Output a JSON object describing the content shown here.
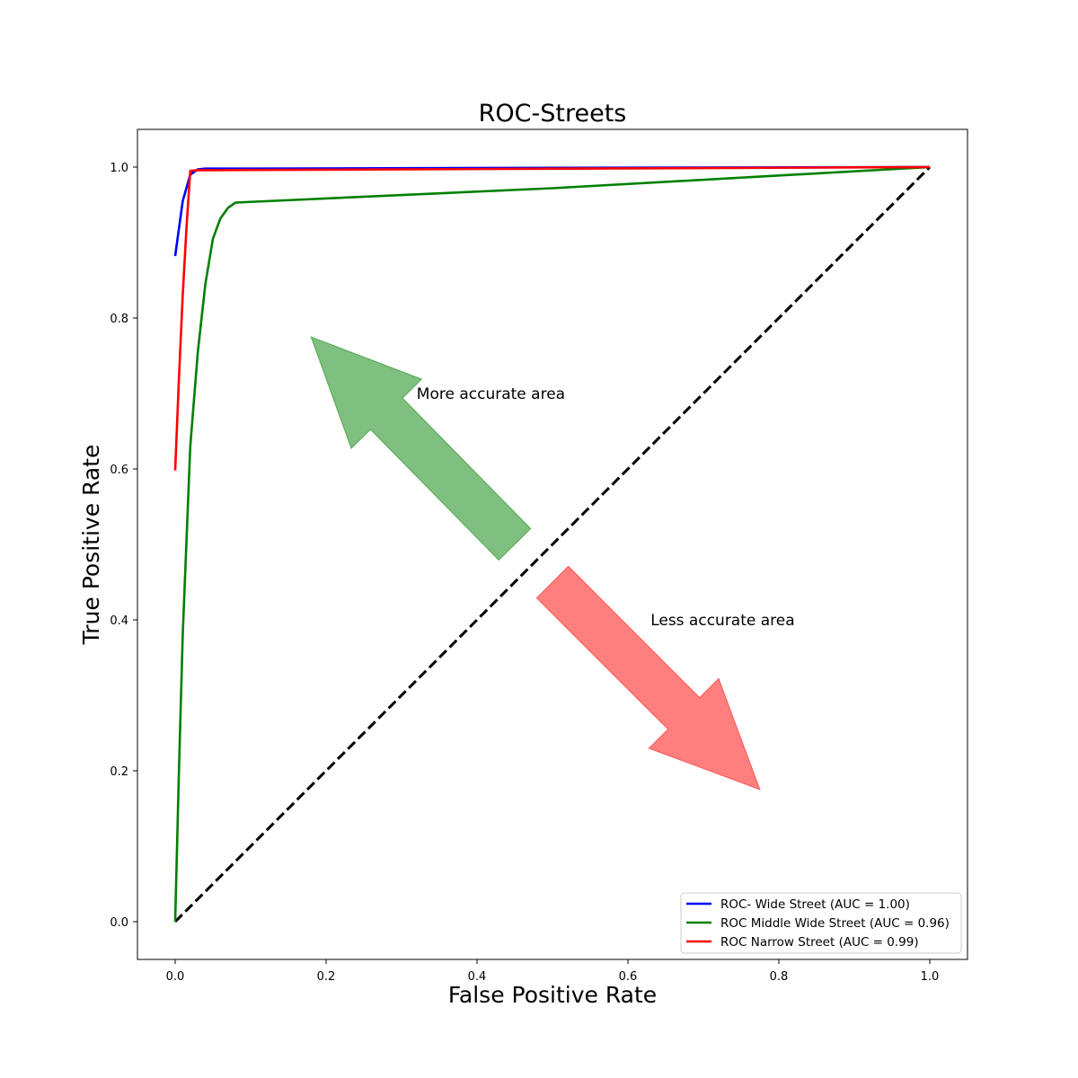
{
  "chart_data": {
    "type": "line",
    "title": "ROC-Streets",
    "xlabel": "False Positive Rate",
    "ylabel": "True Positive Rate",
    "xlim": [
      -0.05,
      1.05
    ],
    "ylim": [
      -0.05,
      1.05
    ],
    "x_ticks": [
      0.0,
      0.2,
      0.4,
      0.6,
      0.8,
      1.0
    ],
    "y_ticks": [
      0.0,
      0.2,
      0.4,
      0.6,
      0.8,
      1.0
    ],
    "x_tick_labels": [
      "0.0",
      "0.2",
      "0.4",
      "0.6",
      "0.8",
      "1.0"
    ],
    "y_tick_labels": [
      "0.0",
      "0.2",
      "0.4",
      "0.6",
      "0.8",
      "1.0"
    ],
    "grid": false,
    "legend_position": "lower-right",
    "series": [
      {
        "name": "ROC- Wide Street (AUC = 1.00)",
        "color": "#0000ff",
        "x": [
          0.0,
          0.01,
          0.02,
          0.03,
          0.04,
          0.06,
          0.1,
          0.5,
          1.0
        ],
        "y": [
          0.882,
          0.955,
          0.99,
          0.997,
          0.998,
          0.998,
          0.998,
          0.999,
          1.0
        ]
      },
      {
        "name": "ROC Middle Wide Street (AUC = 0.96)",
        "color": "#008000",
        "x": [
          0.0,
          0.005,
          0.01,
          0.02,
          0.03,
          0.04,
          0.05,
          0.06,
          0.07,
          0.08,
          0.5,
          1.0
        ],
        "y": [
          0.0,
          0.2,
          0.38,
          0.63,
          0.755,
          0.845,
          0.905,
          0.932,
          0.946,
          0.953,
          0.972,
          1.0
        ]
      },
      {
        "name": "ROC Narrow Street (AUC = 0.99)",
        "color": "#ff0000",
        "x": [
          0.0,
          0.005,
          0.01,
          0.015,
          0.02,
          0.03,
          0.05,
          1.0
        ],
        "y": [
          0.598,
          0.72,
          0.83,
          0.92,
          0.995,
          0.996,
          0.996,
          1.0
        ]
      }
    ],
    "reference_line": {
      "color": "#000000",
      "style": "dashed",
      "x": [
        0.0,
        1.0
      ],
      "y": [
        0.0,
        1.0
      ]
    },
    "annotations": [
      {
        "text": "More accurate area",
        "x": 0.32,
        "y": 0.7,
        "arrow_color": "#008000",
        "arrow_opacity": 0.5,
        "arrow_from": [
          0.45,
          0.5
        ],
        "arrow_to": [
          0.18,
          0.775
        ]
      },
      {
        "text": "Less accurate area",
        "x": 0.63,
        "y": 0.4,
        "arrow_color": "#ff0000",
        "arrow_opacity": 0.5,
        "arrow_from": [
          0.5,
          0.45
        ],
        "arrow_to": [
          0.775,
          0.175
        ]
      }
    ]
  }
}
